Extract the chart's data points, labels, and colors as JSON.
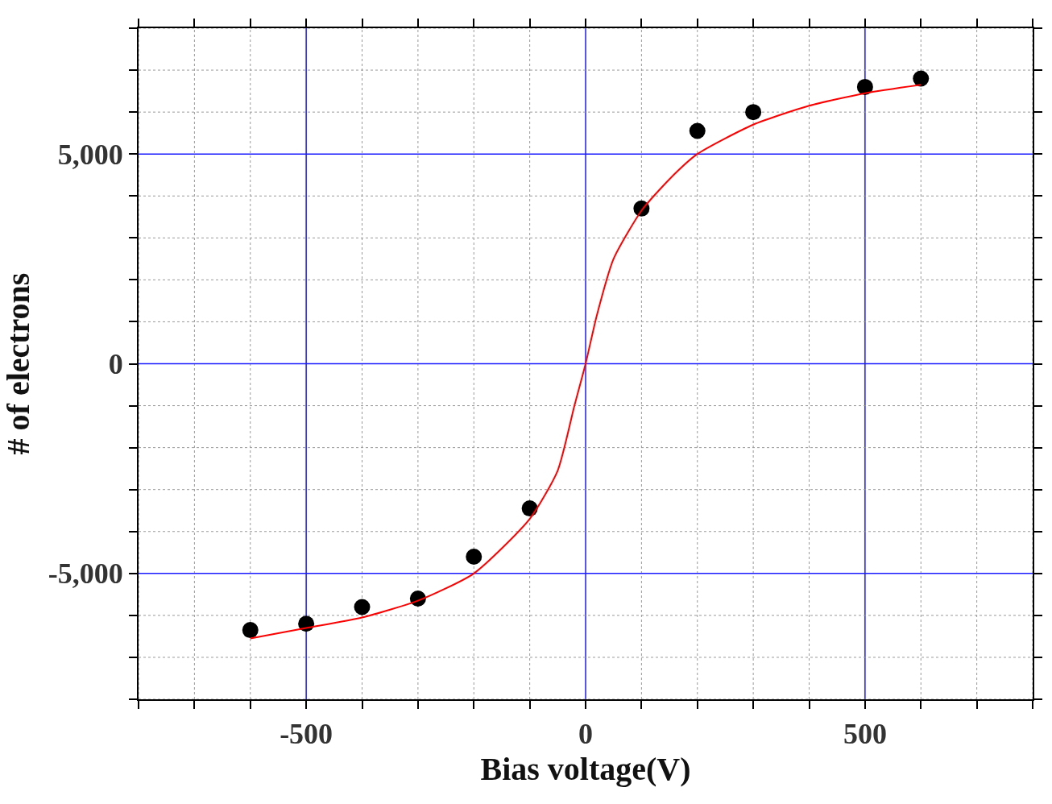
{
  "chart_data": {
    "type": "scatter",
    "xlabel": "Bias voltage(V)",
    "ylabel": "# of electrons",
    "xlim": [
      -800,
      800
    ],
    "xticks": [
      {
        "value": -800,
        "label": null
      },
      {
        "value": -700,
        "label": null
      },
      {
        "value": -600,
        "label": null
      },
      {
        "value": -500,
        "label": "-500"
      },
      {
        "value": -400,
        "label": null
      },
      {
        "value": -300,
        "label": null
      },
      {
        "value": -200,
        "label": null
      },
      {
        "value": -100,
        "label": null
      },
      0,
      {
        "value": 100,
        "label": null
      },
      {
        "value": 200,
        "label": null
      },
      {
        "value": 300,
        "label": null
      },
      {
        "value": 400,
        "label": null
      },
      500,
      {
        "value": 600,
        "label": null
      },
      {
        "value": 700,
        "label": null
      },
      {
        "value": 800,
        "label": null
      }
    ],
    "ylim": [
      -8000,
      8000
    ],
    "yticks": [
      {
        "value": -8000,
        "label": null
      },
      {
        "value": -7000,
        "label": null
      },
      {
        "value": -6000,
        "label": null
      },
      {
        "value": -5000,
        "label": "-5,000"
      },
      {
        "value": -4000,
        "label": null
      },
      {
        "value": -3000,
        "label": null
      },
      {
        "value": -2000,
        "label": null
      },
      {
        "value": -1000,
        "label": null
      },
      0,
      {
        "value": 1000,
        "label": null
      },
      {
        "value": 2000,
        "label": null
      },
      {
        "value": 3000,
        "label": null
      },
      {
        "value": 4000,
        "label": null
      },
      {
        "value": 5000,
        "label": "5,000"
      },
      {
        "value": 6000,
        "label": null
      },
      {
        "value": 7000,
        "label": null
      },
      {
        "value": 8000,
        "label": null
      }
    ],
    "grid": true,
    "legend": false,
    "marker": "circle",
    "series": [
      {
        "color": "#000000",
        "x": [
          -600,
          -500,
          -400,
          -300,
          -200,
          -100,
          100,
          200,
          300,
          500,
          600
        ],
        "values": [
          -6350,
          -6200,
          -5800,
          -5600,
          -4600,
          -3450,
          3700,
          5550,
          6000,
          6600,
          6800
        ]
      },
      {
        "type": "line",
        "color": "#ff0000",
        "marker": "none",
        "line_style": "solid",
        "x": [
          -600,
          -500,
          -400,
          -300,
          -200,
          -100,
          -50,
          -20,
          0,
          20,
          50,
          100,
          150,
          200,
          300,
          400,
          500,
          600
        ],
        "values": [
          -6550,
          -6300,
          -6050,
          -5650,
          -5000,
          -3700,
          -2550,
          -1000,
          0,
          1150,
          2500,
          3650,
          4400,
          5000,
          5700,
          6150,
          6450,
          6650
        ]
      }
    ]
  }
}
